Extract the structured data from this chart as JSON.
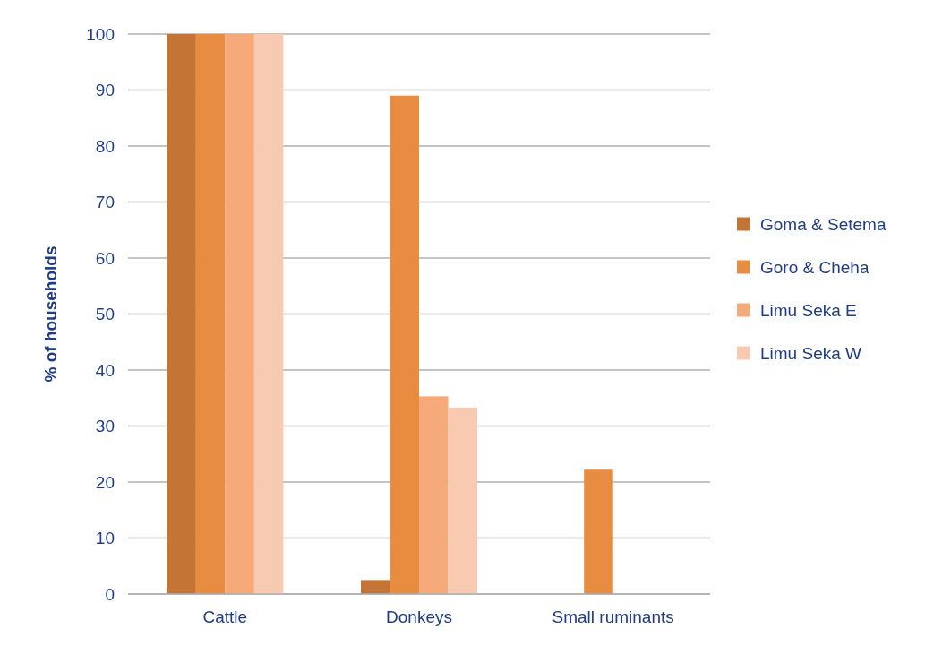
{
  "chart_data": {
    "type": "bar",
    "ylabel": "% of households",
    "categories": [
      "Cattle",
      "Donkeys",
      "Small ruminants"
    ],
    "series": [
      {
        "name": "Goma & Setema",
        "color": "#c47535",
        "values": [
          100,
          2.5,
          0
        ]
      },
      {
        "name": "Goro & Cheha",
        "color": "#e88c41",
        "values": [
          100,
          89,
          22.2
        ]
      },
      {
        "name": "Limu Seka E",
        "color": "#f6aa7a",
        "values": [
          100,
          35.3,
          0
        ]
      },
      {
        "name": "Limu Seka W",
        "color": "#f8cab2",
        "values": [
          100,
          33.3,
          0
        ]
      }
    ],
    "ylim": [
      0,
      100
    ],
    "yticks": [
      0,
      10,
      20,
      30,
      40,
      50,
      60,
      70,
      80,
      90,
      100
    ],
    "grid": "y",
    "legend": "right"
  }
}
